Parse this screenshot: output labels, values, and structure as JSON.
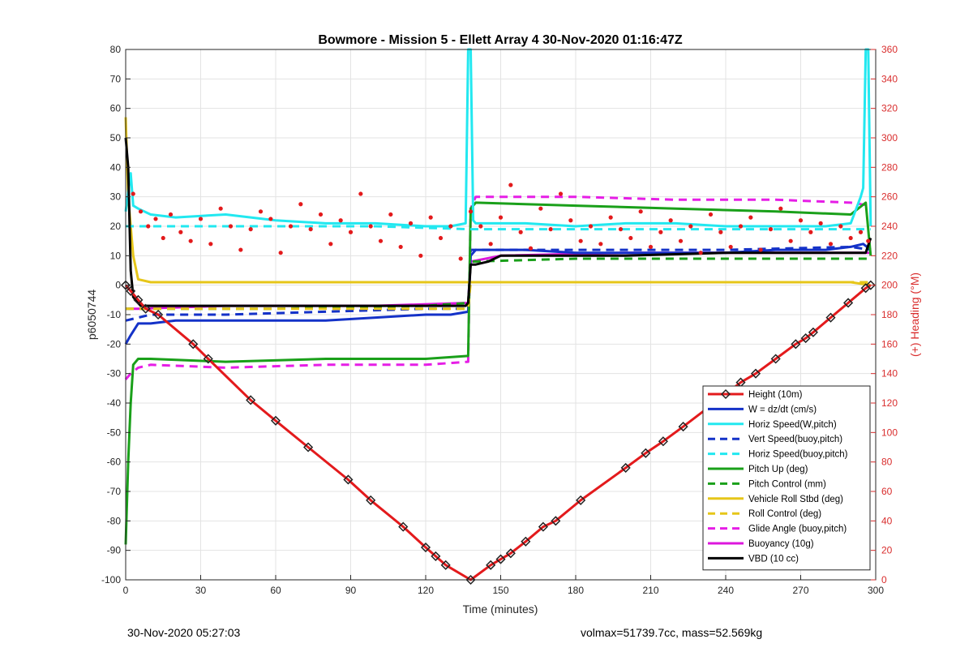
{
  "chart_data": {
    "type": "line",
    "title": "Bowmore - Mission 5 - Ellett Array 4 30-Nov-2020 01:16:47Z",
    "xlabel": "Time (minutes)",
    "ylabel": "p6050744",
    "y2label": "(+) Heading (°M)",
    "xlim": [
      0,
      300
    ],
    "ylim": [
      -100,
      80
    ],
    "y2lim": [
      0,
      360
    ],
    "xticks": [
      "0",
      "30",
      "60",
      "90",
      "120",
      "150",
      "180",
      "210",
      "240",
      "270",
      "300"
    ],
    "yticks": [
      "80",
      "70",
      "60",
      "50",
      "40",
      "30",
      "20",
      "10",
      "0",
      "-10",
      "-20",
      "-30",
      "-40",
      "-50",
      "-60",
      "-70",
      "-80",
      "-90",
      "-100"
    ],
    "y2ticks": [
      "360",
      "340",
      "320",
      "300",
      "280",
      "260",
      "240",
      "220",
      "200",
      "180",
      "160",
      "140",
      "120",
      "100",
      "80",
      "60",
      "40",
      "20",
      "0"
    ],
    "grid": true,
    "legend_position": "bottom-right",
    "series": [
      {
        "name": "Height (10m)",
        "color": "#e31a1c",
        "style": "solid",
        "marker": "diamond",
        "x": [
          0,
          2,
          5,
          8,
          13,
          27,
          33,
          50,
          60,
          73,
          89,
          98,
          111,
          120,
          124,
          128,
          138,
          146,
          150,
          154,
          160,
          167,
          172,
          182,
          200,
          208,
          215,
          223,
          240,
          246,
          252,
          260,
          268,
          272,
          275,
          282,
          289,
          296,
          298
        ],
        "y": [
          0,
          -2,
          -5,
          -8,
          -10,
          -20,
          -25,
          -39,
          -46,
          -55,
          -66,
          -73,
          -82,
          -89,
          -92,
          -95,
          -100,
          -95,
          -93,
          -91,
          -87,
          -82,
          -80,
          -73,
          -62,
          -57,
          -53,
          -48,
          -37,
          -33,
          -30,
          -25,
          -20,
          -18,
          -16,
          -11,
          -6,
          -1,
          0
        ]
      },
      {
        "name": "W = dz/dt (cm/s)",
        "color": "#1432c8",
        "style": "solid",
        "x": [
          0,
          2,
          5,
          10,
          20,
          40,
          60,
          80,
          100,
          120,
          130,
          137,
          138,
          140,
          160,
          180,
          200,
          220,
          240,
          260,
          280,
          290,
          295,
          298
        ],
        "y": [
          -20,
          -17,
          -13,
          -13,
          -12,
          -12,
          -12,
          -12,
          -11,
          -10,
          -10,
          -9,
          10,
          12,
          12,
          11,
          11,
          11,
          11,
          12,
          12,
          13,
          14,
          12
        ]
      },
      {
        "name": "Horiz Speed(W,pitch)",
        "color": "#22e8f0",
        "style": "solid",
        "x": [
          0,
          2,
          3,
          5,
          10,
          20,
          40,
          60,
          80,
          100,
          120,
          130,
          136,
          137,
          138,
          139,
          140,
          160,
          180,
          200,
          220,
          240,
          260,
          280,
          290,
          294,
          295,
          296,
          297,
          298
        ],
        "y": [
          25,
          38,
          27,
          26,
          24,
          23,
          24,
          22,
          21,
          21,
          20,
          20,
          21,
          80,
          80,
          22,
          21,
          21,
          20,
          21,
          21,
          20,
          20,
          20,
          21,
          30,
          33,
          80,
          80,
          20
        ]
      },
      {
        "name": "Vert Speed(buoy,pitch)",
        "color": "#1432c8",
        "style": "dashed",
        "x": [
          0,
          10,
          40,
          80,
          120,
          137,
          138,
          180,
          240,
          290,
          298
        ],
        "y": [
          -12,
          -10,
          -10,
          -9,
          -8,
          -8,
          12,
          12,
          12,
          13,
          12
        ]
      },
      {
        "name": "Horiz Speed(buoy,pitch)",
        "color": "#22e8f0",
        "style": "dashed",
        "x": [
          0,
          10,
          60,
          100,
          137,
          138,
          180,
          240,
          298
        ],
        "y": [
          20,
          20,
          20,
          20,
          19,
          19,
          19,
          19,
          19
        ]
      },
      {
        "name": "Pitch Up (deg)",
        "color": "#1aa01a",
        "style": "solid",
        "x": [
          0,
          1,
          2,
          3,
          5,
          10,
          40,
          80,
          120,
          137,
          138,
          140,
          180,
          220,
          260,
          290,
          296,
          298
        ],
        "y": [
          -88,
          -60,
          -40,
          -27,
          -25,
          -25,
          -26,
          -25,
          -25,
          -24,
          26,
          28,
          27,
          26,
          25,
          24,
          28,
          10
        ]
      },
      {
        "name": "Pitch Control (mm)",
        "color": "#1aa01a",
        "style": "dashed",
        "x": [
          0,
          10,
          60,
          120,
          137,
          138,
          180,
          240,
          298
        ],
        "y": [
          -8,
          -8,
          -8,
          -7,
          -6,
          8,
          9,
          9,
          9
        ]
      },
      {
        "name": "Vehicle Roll Stbd (deg)",
        "color": "#e6c619",
        "style": "solid",
        "x": [
          0,
          1,
          3,
          5,
          10,
          40,
          80,
          100,
          120,
          137,
          138,
          150,
          180,
          220,
          260,
          290,
          298
        ],
        "y": [
          57,
          30,
          10,
          2,
          1,
          1,
          1,
          1,
          1,
          1,
          1,
          1,
          1,
          1,
          1,
          1,
          0
        ]
      },
      {
        "name": "Roll Control (deg)",
        "color": "#e6c619",
        "style": "dashed",
        "x": [
          0,
          10,
          60,
          120,
          137,
          138,
          180,
          240,
          298
        ],
        "y": [
          -8,
          -8,
          -8,
          -8,
          -8,
          1,
          1,
          1,
          1
        ]
      },
      {
        "name": "Glide Angle (buoy,pitch)",
        "color": "#e61ee6",
        "style": "dashed",
        "x": [
          0,
          2,
          5,
          10,
          40,
          80,
          120,
          137,
          138,
          140,
          180,
          220,
          260,
          290,
          298
        ],
        "y": [
          -32,
          -30,
          -28,
          -27,
          -28,
          -27,
          -27,
          -26,
          26,
          30,
          30,
          29,
          29,
          28,
          27
        ]
      },
      {
        "name": "Buoyancy (10g)",
        "color": "#dd17dd",
        "style": "solid",
        "x": [
          0,
          5,
          40,
          100,
          137,
          138,
          150,
          200,
          260,
          298
        ],
        "y": [
          -8,
          -8,
          -7,
          -7,
          -6,
          8,
          10,
          11,
          11,
          11
        ]
      },
      {
        "name": "VBD (10 cc)",
        "color": "#000000",
        "style": "solid",
        "x": [
          0,
          1,
          2,
          3,
          5,
          6,
          10,
          40,
          100,
          136,
          137,
          138,
          140,
          145,
          150,
          160,
          200,
          240,
          260,
          290,
          296,
          298
        ],
        "y": [
          50,
          40,
          5,
          -4,
          -6,
          -7,
          -7,
          -7,
          -7,
          -7,
          -6,
          7,
          7,
          8,
          10,
          10,
          10,
          11,
          11,
          11,
          11,
          16
        ]
      }
    ],
    "heading_points": {
      "name": "Heading",
      "color": "#e31a1c",
      "axis": "right",
      "x": [
        3,
        6,
        9,
        12,
        15,
        18,
        22,
        26,
        30,
        34,
        38,
        42,
        46,
        50,
        54,
        58,
        62,
        66,
        70,
        74,
        78,
        82,
        86,
        90,
        94,
        98,
        102,
        106,
        110,
        114,
        118,
        122,
        126,
        130,
        134,
        138,
        142,
        146,
        150,
        154,
        158,
        162,
        166,
        170,
        174,
        178,
        182,
        186,
        190,
        194,
        198,
        202,
        206,
        210,
        214,
        218,
        222,
        226,
        230,
        234,
        238,
        242,
        246,
        250,
        254,
        258,
        262,
        266,
        270,
        274,
        278,
        282,
        286,
        290,
        294,
        297
      ],
      "y": [
        262,
        250,
        240,
        245,
        232,
        248,
        236,
        230,
        245,
        228,
        252,
        240,
        224,
        238,
        250,
        245,
        222,
        240,
        255,
        238,
        248,
        228,
        244,
        236,
        262,
        240,
        230,
        248,
        226,
        242,
        220,
        246,
        232,
        240,
        218,
        250,
        240,
        228,
        246,
        268,
        236,
        225,
        252,
        238,
        262,
        244,
        230,
        240,
        228,
        246,
        238,
        232,
        250,
        226,
        236,
        244,
        230,
        240,
        222,
        248,
        236,
        226,
        240,
        246,
        224,
        238,
        252,
        230,
        244,
        236,
        242,
        228,
        240,
        232,
        236,
        230
      ]
    }
  },
  "footer": {
    "left": "30-Nov-2020 05:27:03",
    "right": "volmax=51739.7cc, mass=52.569kg"
  }
}
